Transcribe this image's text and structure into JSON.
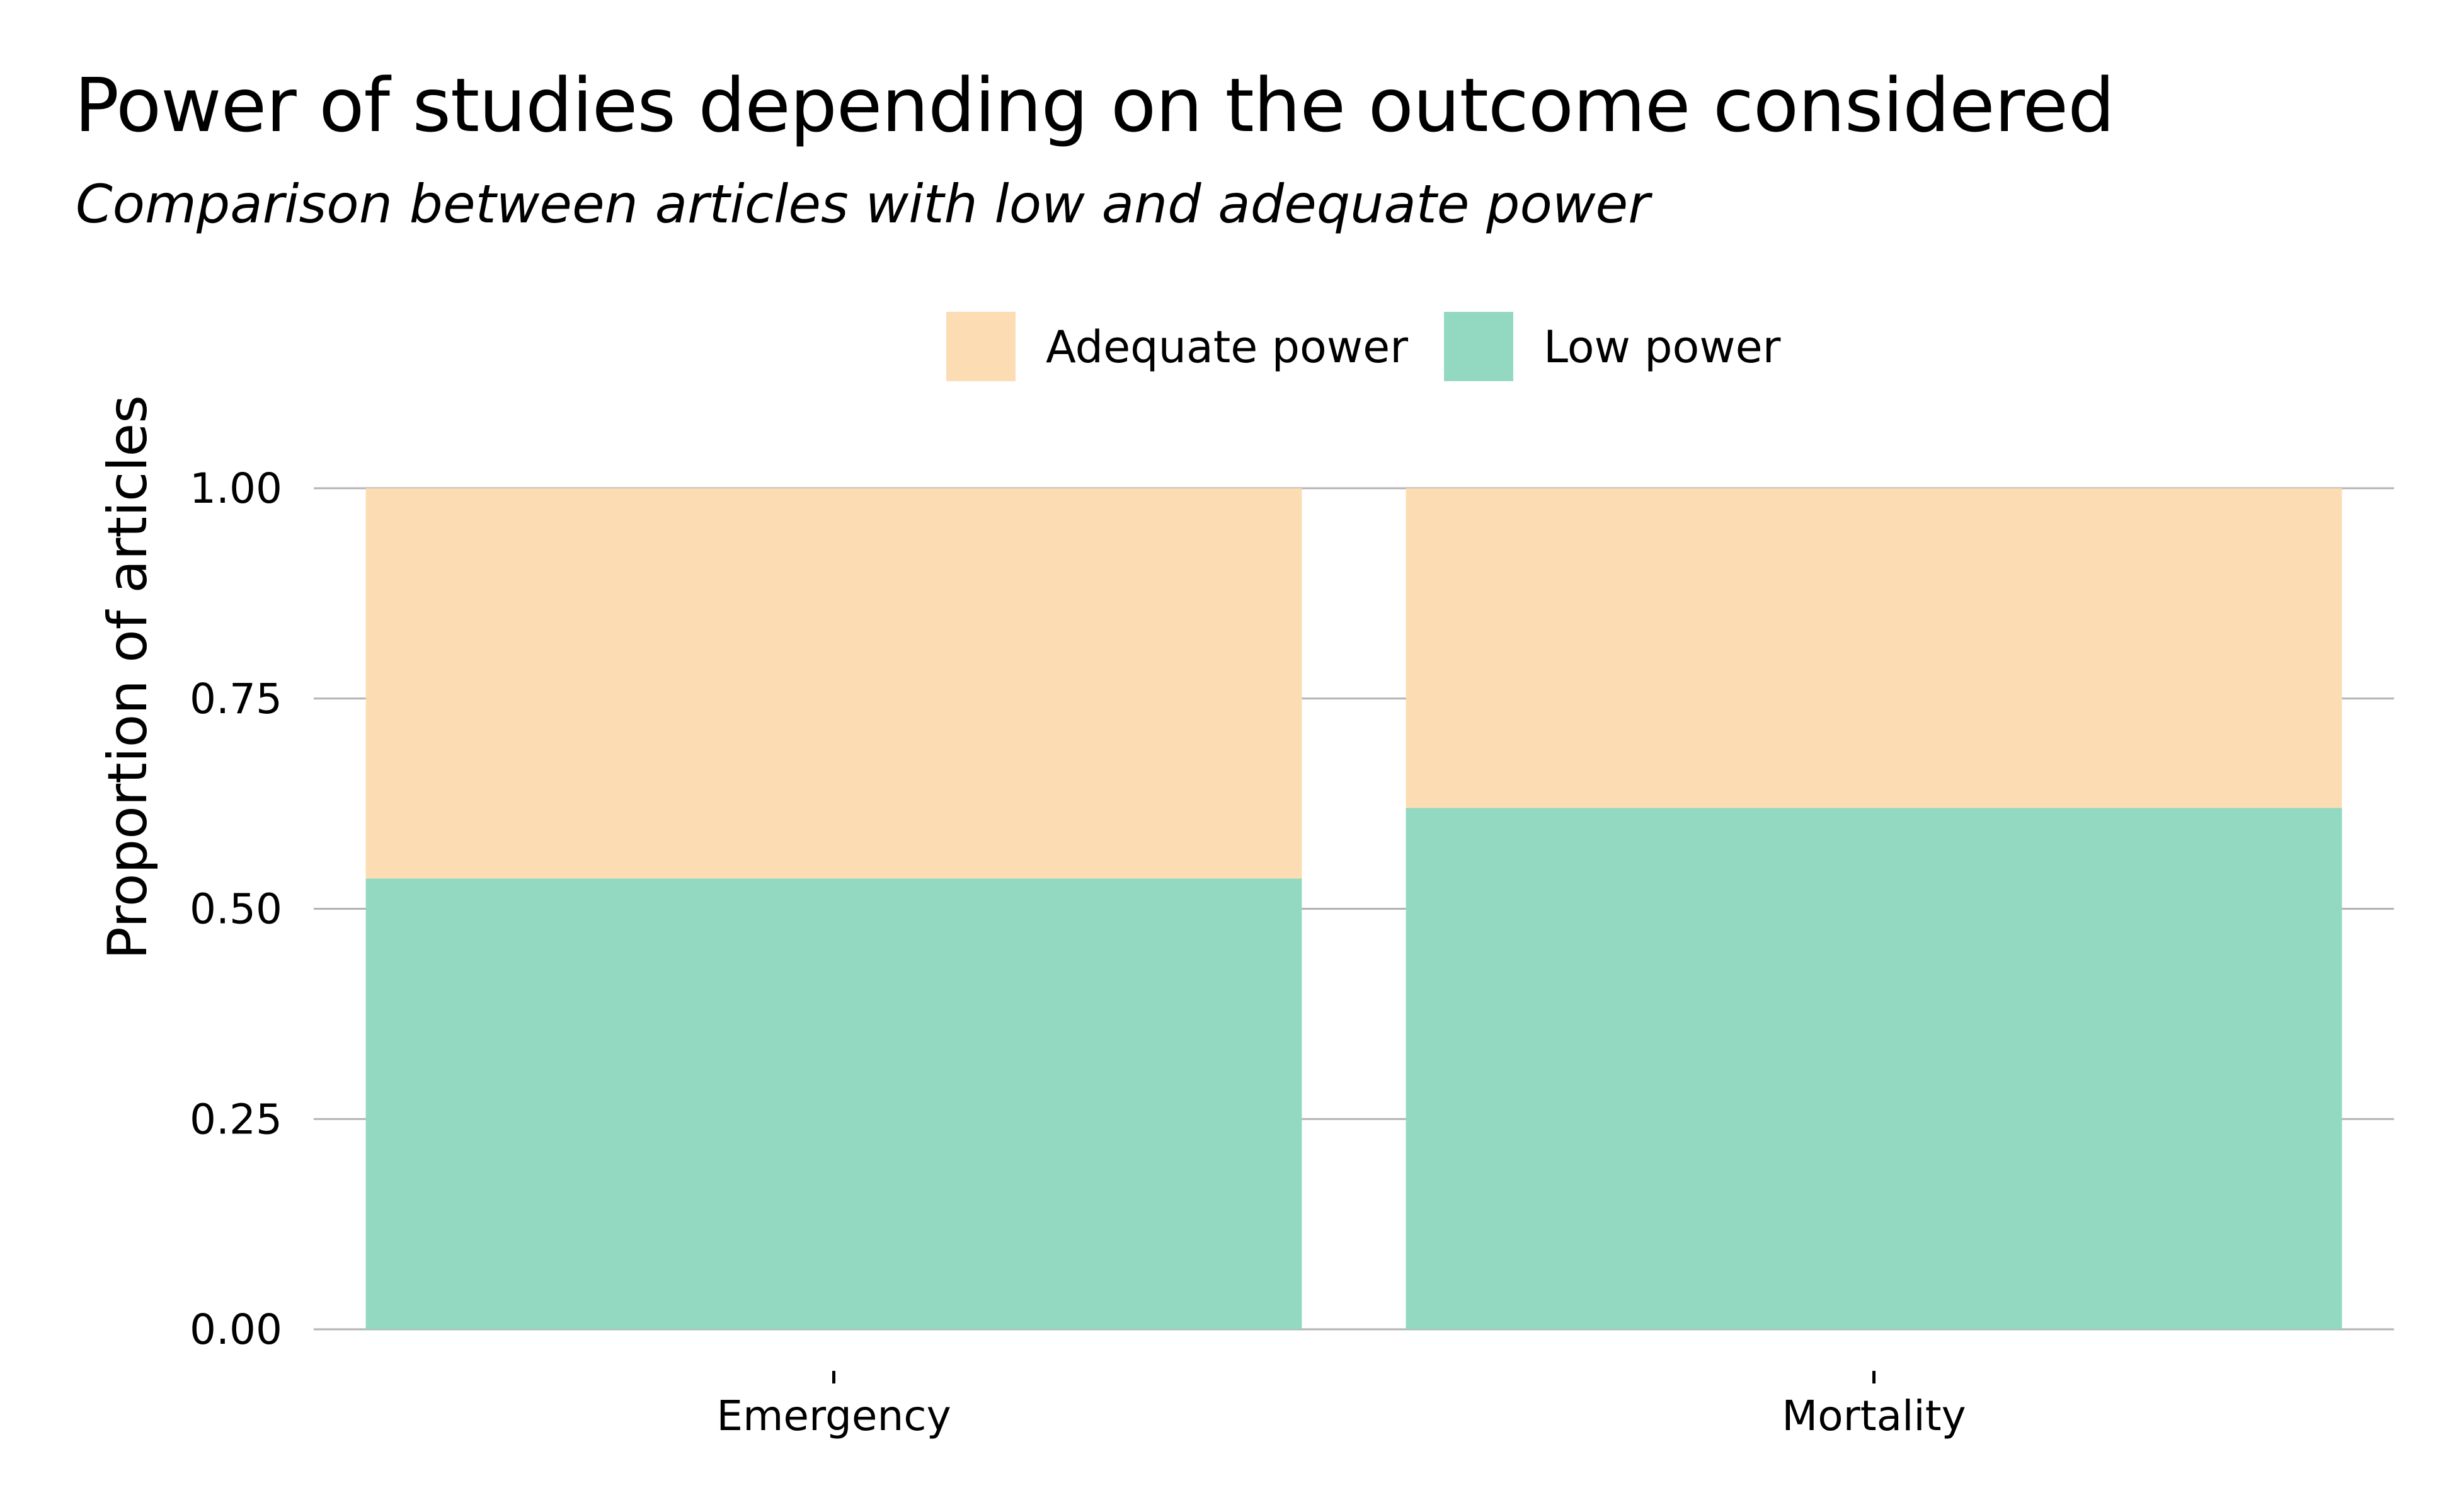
{
  "chart_data": {
    "type": "bar",
    "stacked": true,
    "title": "Power of studies depending on the outcome considered",
    "subtitle": "Comparison between articles with low and adequate power",
    "xlabel": "",
    "ylabel": "Proportion of articles",
    "categories": [
      "Emergency",
      "Mortality"
    ],
    "series": [
      {
        "name": "Low power",
        "color": "#93d9c2",
        "values": [
          0.536,
          0.62
        ]
      },
      {
        "name": "Adequate power",
        "color": "#fcddb3",
        "values": [
          0.464,
          0.38
        ]
      }
    ],
    "ylim": [
      0,
      1
    ],
    "yticks": [
      "0.00",
      "0.25",
      "0.50",
      "0.75",
      "1.00"
    ],
    "legend": {
      "position": "top",
      "entries": [
        "Adequate power",
        "Low power"
      ]
    },
    "grid": {
      "horizontal": true,
      "vertical": false,
      "color": "#b3b3b3"
    }
  }
}
